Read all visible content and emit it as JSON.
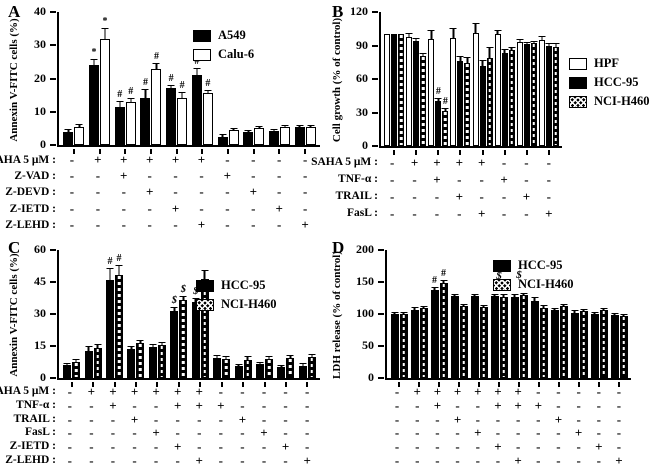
{
  "colors": {
    "ink": "#000000",
    "background": "#ffffff"
  },
  "chart_data": {
    "type": "bar",
    "panels": [
      {
        "letter": "A",
        "ylabel": "Annexin V-FITC cells (%)",
        "ymax": 40,
        "yticks": [
          0,
          10,
          20,
          30,
          40
        ],
        "series": [
          {
            "name": "A549",
            "style": "solid"
          },
          {
            "name": "Calu-6",
            "style": "open"
          }
        ],
        "groups": [
          {
            "values": [
              4,
              5.5
            ],
            "errors": [
              0.4,
              0.5
            ],
            "ann": [
              "",
              ""
            ]
          },
          {
            "values": [
              24,
              32
            ],
            "errors": [
              1.5,
              3
            ],
            "ann": [
              "*",
              "*"
            ]
          },
          {
            "values": [
              11.5,
              13
            ],
            "errors": [
              1.5,
              0.8
            ],
            "ann": [
              "#",
              "#"
            ]
          },
          {
            "values": [
              14,
              23
            ],
            "errors": [
              2.5,
              1.5
            ],
            "ann": [
              "#",
              "#"
            ]
          },
          {
            "values": [
              17,
              14
            ],
            "errors": [
              0.8,
              1.5
            ],
            "ann": [
              "#",
              "#"
            ]
          },
          {
            "values": [
              21,
              15.5
            ],
            "errors": [
              2,
              0.8
            ],
            "ann": [
              "#",
              "#"
            ]
          },
          {
            "values": [
              2.5,
              4.5
            ],
            "errors": [
              0.4,
              0.4
            ],
            "ann": [
              "",
              ""
            ]
          },
          {
            "values": [
              3.8,
              5
            ],
            "errors": [
              0.3,
              0.4
            ],
            "ann": [
              "",
              ""
            ]
          },
          {
            "values": [
              4.3,
              5.3
            ],
            "errors": [
              0.3,
              0.3
            ],
            "ann": [
              "",
              ""
            ]
          },
          {
            "values": [
              5.3,
              5.3
            ],
            "errors": [
              0.3,
              0.3
            ],
            "ann": [
              "",
              ""
            ]
          }
        ],
        "rows": [
          {
            "label": "SAHA 5 μM :",
            "signs": [
              "-",
              "+",
              "+",
              "+",
              "+",
              "+",
              "-",
              "-",
              "-",
              "-"
            ]
          },
          {
            "label": "Z-VAD :",
            "signs": [
              "-",
              "-",
              "+",
              "-",
              "-",
              "-",
              "+",
              "-",
              "-",
              "-"
            ]
          },
          {
            "label": "Z-DEVD :",
            "signs": [
              "-",
              "-",
              "-",
              "+",
              "-",
              "-",
              "-",
              "+",
              "-",
              "-"
            ]
          },
          {
            "label": "Z-IETD :",
            "signs": [
              "-",
              "-",
              "-",
              "-",
              "+",
              "-",
              "-",
              "-",
              "+",
              "-"
            ]
          },
          {
            "label": "Z-LEHD :",
            "signs": [
              "-",
              "-",
              "-",
              "-",
              "-",
              "+",
              "-",
              "-",
              "-",
              "+"
            ]
          }
        ]
      },
      {
        "letter": "B",
        "ylabel": "Cell growth (% of control)",
        "ymax": 120,
        "yticks": [
          0,
          30,
          60,
          90,
          120
        ],
        "series": [
          {
            "name": "HPF",
            "style": "open"
          },
          {
            "name": "HCC-95",
            "style": "solid"
          },
          {
            "name": "NCI-H460",
            "style": "hatch"
          }
        ],
        "groups": [
          {
            "values": [
              100,
              100,
              100
            ],
            "errors": [
              0,
              0,
              0
            ],
            "ann": [
              "",
              "",
              ""
            ]
          },
          {
            "values": [
              98,
              94,
              81
            ],
            "errors": [
              2,
              2,
              1.5
            ],
            "ann": [
              "",
              "",
              ""
            ]
          },
          {
            "values": [
              96,
              40,
              31
            ],
            "errors": [
              7,
              2,
              2
            ],
            "ann": [
              "",
              "#",
              "#"
            ]
          },
          {
            "values": [
              97,
              76,
              74
            ],
            "errors": [
              8,
              4,
              5
            ],
            "ann": [
              "",
              "",
              ""
            ]
          },
          {
            "values": [
              101,
              72,
              79
            ],
            "errors": [
              8,
              4,
              9
            ],
            "ann": [
              "",
              "",
              ""
            ]
          },
          {
            "values": [
              100,
              83,
              86
            ],
            "errors": [
              3,
              3,
              1.5
            ],
            "ann": [
              "",
              "",
              ""
            ]
          },
          {
            "values": [
              93,
              91,
              92
            ],
            "errors": [
              2,
              1.5,
              1.5
            ],
            "ann": [
              "",
              "",
              ""
            ]
          },
          {
            "values": [
              95,
              90,
              89
            ],
            "errors": [
              3,
              1.5,
              2
            ],
            "ann": [
              "",
              "",
              ""
            ]
          }
        ],
        "rows": [
          {
            "label": "SAHA 5 μM :",
            "signs": [
              "-",
              "+",
              "+",
              "+",
              "+",
              "-",
              "-",
              "-"
            ]
          },
          {
            "label": "TNF-α :",
            "signs": [
              "-",
              "-",
              "+",
              "-",
              "-",
              "+",
              "-",
              "-"
            ]
          },
          {
            "label": "TRAIL :",
            "signs": [
              "-",
              "-",
              "-",
              "+",
              "-",
              "-",
              "+",
              "-"
            ]
          },
          {
            "label": "FasL :",
            "signs": [
              "-",
              "-",
              "-",
              "-",
              "+",
              "-",
              "-",
              "+"
            ]
          }
        ]
      },
      {
        "letter": "C",
        "ylabel": "Annexin V-FITC cells (%)",
        "ymax": 60,
        "yticks": [
          0,
          15,
          30,
          45,
          60
        ],
        "series": [
          {
            "name": "HCC-95",
            "style": "solid"
          },
          {
            "name": "NCI-H460",
            "style": "hatch"
          }
        ],
        "groups": [
          {
            "values": [
              6,
              7.5
            ],
            "errors": [
              0.7,
              0.8
            ],
            "ann": [
              "",
              ""
            ]
          },
          {
            "values": [
              12.5,
              14
            ],
            "errors": [
              2,
              1.5
            ],
            "ann": [
              "",
              ""
            ]
          },
          {
            "values": [
              46,
              48.5
            ],
            "errors": [
              5,
              4
            ],
            "ann": [
              "#",
              "#"
            ]
          },
          {
            "values": [
              13.5,
              16.5
            ],
            "errors": [
              1,
              1
            ],
            "ann": [
              "",
              ""
            ]
          },
          {
            "values": [
              14.5,
              15.5
            ],
            "errors": [
              0.8,
              0.8
            ],
            "ann": [
              "",
              ""
            ]
          },
          {
            "values": [
              31.5,
              36.5
            ],
            "errors": [
              1.5,
              1.5
            ],
            "ann": [
              "$",
              "$"
            ]
          },
          {
            "values": [
              35.5,
              46.5
            ],
            "errors": [
              1.5,
              3.5
            ],
            "ann": [
              "$",
              ""
            ]
          },
          {
            "values": [
              9.5,
              9
            ],
            "errors": [
              1,
              1
            ],
            "ann": [
              "",
              ""
            ]
          },
          {
            "values": [
              5.5,
              8.5
            ],
            "errors": [
              0.7,
              1.5
            ],
            "ann": [
              "",
              ""
            ]
          },
          {
            "values": [
              6.5,
              9
            ],
            "errors": [
              0.7,
              1
            ],
            "ann": [
              "",
              ""
            ]
          },
          {
            "values": [
              5,
              9.5
            ],
            "errors": [
              0.7,
              1
            ],
            "ann": [
              "",
              ""
            ]
          },
          {
            "values": [
              5.5,
              10
            ],
            "errors": [
              1,
              1
            ],
            "ann": [
              "",
              ""
            ]
          }
        ],
        "rows": [
          {
            "label": "SAHA 5 μM :",
            "signs": [
              "-",
              "+",
              "+",
              "+",
              "+",
              "+",
              "+",
              "-",
              "-",
              "-",
              "-",
              "-"
            ]
          },
          {
            "label": "TNF-α :",
            "signs": [
              "-",
              "-",
              "+",
              "-",
              "-",
              "+",
              "+",
              "+",
              "-",
              "-",
              "-",
              "-"
            ]
          },
          {
            "label": "TRAIL :",
            "signs": [
              "-",
              "-",
              "-",
              "+",
              "-",
              "-",
              "-",
              "-",
              "+",
              "-",
              "-",
              "-"
            ]
          },
          {
            "label": "FasL :",
            "signs": [
              "-",
              "-",
              "-",
              "-",
              "+",
              "-",
              "-",
              "-",
              "-",
              "+",
              "-",
              "-"
            ]
          },
          {
            "label": "Z-IETD :",
            "signs": [
              "-",
              "-",
              "-",
              "-",
              "-",
              "+",
              "-",
              "-",
              "-",
              "-",
              "+",
              "-"
            ]
          },
          {
            "label": "Z-LEHD :",
            "signs": [
              "-",
              "-",
              "-",
              "-",
              "-",
              "-",
              "+",
              "-",
              "-",
              "-",
              "-",
              "+"
            ]
          }
        ]
      },
      {
        "letter": "D",
        "ylabel": "LDH release (% of control)",
        "ymax": 200,
        "yticks": [
          0,
          50,
          100,
          150,
          200
        ],
        "series": [
          {
            "name": "HCC-95",
            "style": "solid"
          },
          {
            "name": "NCI-H460",
            "style": "hatch"
          }
        ],
        "groups": [
          {
            "values": [
              100,
              100
            ],
            "errors": [
              2,
              2
            ],
            "ann": [
              "",
              ""
            ]
          },
          {
            "values": [
              106,
              109
            ],
            "errors": [
              4,
              2
            ],
            "ann": [
              "",
              ""
            ]
          },
          {
            "values": [
              138,
              148
            ],
            "errors": [
              3,
              3
            ],
            "ann": [
              "#",
              "#"
            ]
          },
          {
            "values": [
              128,
              112
            ],
            "errors": [
              2,
              2
            ],
            "ann": [
              "",
              ""
            ]
          },
          {
            "values": [
              128,
              111
            ],
            "errors": [
              2,
              2
            ],
            "ann": [
              "",
              ""
            ]
          },
          {
            "values": [
              128,
              127
            ],
            "errors": [
              2,
              2
            ],
            "ann": [
              "",
              ""
            ],
            "gann": "$"
          },
          {
            "values": [
              127,
              130
            ],
            "errors": [
              2,
              2
            ],
            "ann": [
              "",
              ""
            ],
            "gann": "$"
          },
          {
            "values": [
              120,
              110
            ],
            "errors": [
              5,
              2
            ],
            "ann": [
              "",
              ""
            ]
          },
          {
            "values": [
              106,
              112
            ],
            "errors": [
              2,
              2
            ],
            "ann": [
              "",
              ""
            ]
          },
          {
            "values": [
              102,
              105
            ],
            "errors": [
              2,
              2
            ],
            "ann": [
              "",
              ""
            ]
          },
          {
            "values": [
              100,
              106
            ],
            "errors": [
              2,
              2
            ],
            "ann": [
              "",
              ""
            ]
          },
          {
            "values": [
              98,
              97
            ],
            "errors": [
              2,
              2
            ],
            "ann": [
              "",
              ""
            ]
          }
        ],
        "rows": [
          {
            "label": "",
            "signs": [
              "-",
              "+",
              "+",
              "+",
              "+",
              "+",
              "+",
              "-",
              "-",
              "-",
              "-",
              "-"
            ]
          },
          {
            "label": "",
            "signs": [
              "-",
              "-",
              "+",
              "-",
              "-",
              "+",
              "+",
              "+",
              "-",
              "-",
              "-",
              "-"
            ]
          },
          {
            "label": "",
            "signs": [
              "-",
              "-",
              "-",
              "+",
              "-",
              "-",
              "-",
              "-",
              "+",
              "-",
              "-",
              "-"
            ]
          },
          {
            "label": "",
            "signs": [
              "-",
              "-",
              "-",
              "-",
              "+",
              "-",
              "-",
              "-",
              "-",
              "+",
              "-",
              "-"
            ]
          },
          {
            "label": "",
            "signs": [
              "-",
              "-",
              "-",
              "-",
              "-",
              "+",
              "-",
              "-",
              "-",
              "-",
              "+",
              "-"
            ]
          },
          {
            "label": "",
            "signs": [
              "-",
              "-",
              "-",
              "-",
              "-",
              "-",
              "+",
              "-",
              "-",
              "-",
              "-",
              "+"
            ]
          }
        ]
      }
    ]
  }
}
